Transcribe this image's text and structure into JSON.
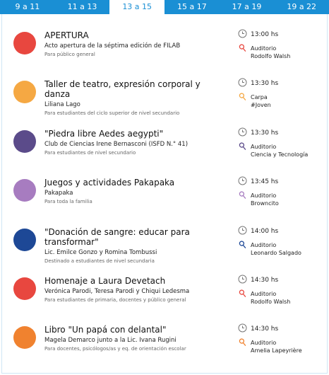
{
  "tabs": [
    "9 a 11",
    "11 a 13",
    "13 a 15",
    "15 a 17",
    "17 a 19",
    "19 a 22"
  ],
  "active_tab": 2,
  "events": [
    {
      "title": "APERTURA",
      "speaker": "Acto apertura de la séptima edición de FILAB",
      "audience": "Para público general",
      "time": "13:00 hs",
      "place": "Auditorio",
      "room": "Rodolfo Walsh",
      "color": "#e8473f"
    },
    {
      "title": "Taller de teatro, expresión corporal y danza",
      "speaker": "Liliana Lago",
      "audience": "Para estudiantes del ciclo superior de nivel secundario",
      "time": "13:30 hs",
      "place": "Carpa",
      "room": "#Joven",
      "color": "#f5a843"
    },
    {
      "title": "\"Piedra libre Aedes aegypti\"",
      "speaker": "Club de Ciencias Irene Bernasconi (ISFD N.° 41)",
      "audience": "Para estudiantes de nivel secundario",
      "time": "13:30 hs",
      "place": "Auditorio",
      "room": "Ciencia y Tecnología",
      "color": "#5b4b8a"
    },
    {
      "title": "Juegos y actividades Pakapaka",
      "speaker": "Pakapaka",
      "audience": "Para toda la familia",
      "time": "13:45 hs",
      "place": "Auditorio",
      "room": "Browncito",
      "color": "#a77cc0"
    },
    {
      "title": "\"Donación de sangre: educar para transformar\"",
      "speaker": "Lic. Emilce Gonzo y Romina Tombussi",
      "audience": "Destinado a estudiantes de nivel secundaria",
      "time": "14:00 hs",
      "place": "Auditorio",
      "room": "Leonardo Salgado",
      "color": "#1d4896"
    },
    {
      "title": "Homenaje a Laura Devetach",
      "speaker": "Verónica Parodi, Teresa Parodi y Chiqui Ledesma",
      "audience": "Para estudiantes de primaria, docentes y público general",
      "time": "14:30 hs",
      "place": "Auditorio",
      "room": "Rodolfo Walsh",
      "color": "#e8473f"
    },
    {
      "title": "Libro \"Un papá con delantal\"",
      "speaker": "Magela Demarco junto a la Lic. Ivana Rugini",
      "audience": "Para docentes, psicólogos/as y eq. de orientación escolar",
      "time": "14:30 hs",
      "place": "Auditorio",
      "room": "Amelia Lapeyrière",
      "color": "#f0822f"
    }
  ]
}
